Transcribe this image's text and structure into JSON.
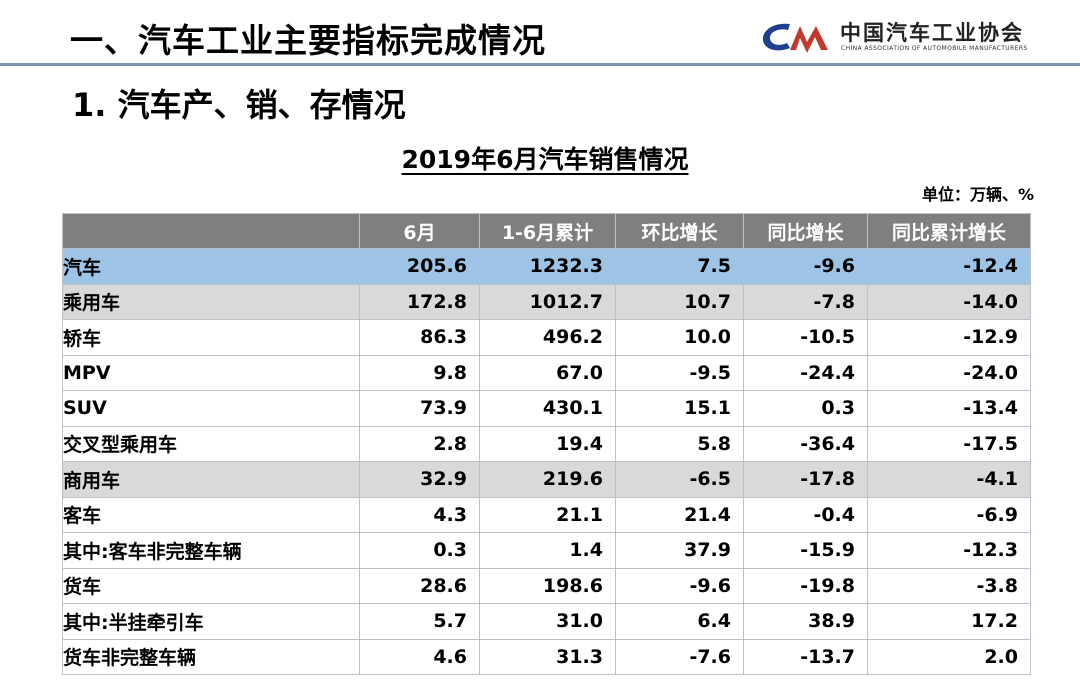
{
  "header": {
    "title": "一、汽车工业主要指标完成情况",
    "logo_cn": "中国汽车工业协会",
    "logo_en": "CHINA ASSOCIATION OF AUTOMOBILE MANUFACTURERS",
    "logo_color": "#1f3f8f"
  },
  "section_title": "1. 汽车产、销、存情况",
  "table_title": "2019年6月汽车销售情况",
  "unit": "单位：万辆、%",
  "table": {
    "columns": [
      "",
      "6月",
      "1-6月累计",
      "环比增长",
      "同比增长",
      "同比累计增长"
    ],
    "rows": [
      {
        "name": "汽车",
        "values": [
          "205.6",
          "1232.3",
          "7.5",
          "-9.6",
          "-12.4"
        ]
      },
      {
        "name": "乘用车",
        "values": [
          "172.8",
          "1012.7",
          "10.7",
          "-7.8",
          "-14.0"
        ]
      },
      {
        "name": "轿车",
        "values": [
          "86.3",
          "496.2",
          "10.0",
          "-10.5",
          "-12.9"
        ]
      },
      {
        "name": "MPV",
        "values": [
          "9.8",
          "67.0",
          "-9.5",
          "-24.4",
          "-24.0"
        ]
      },
      {
        "name": "SUV",
        "values": [
          "73.9",
          "430.1",
          "15.1",
          "0.3",
          "-13.4"
        ]
      },
      {
        "name": "交叉型乘用车",
        "values": [
          "2.8",
          "19.4",
          "5.8",
          "-36.4",
          "-17.5"
        ]
      },
      {
        "name": "商用车",
        "values": [
          "32.9",
          "219.6",
          "-6.5",
          "-17.8",
          "-4.1"
        ]
      },
      {
        "name": "客车",
        "values": [
          "4.3",
          "21.1",
          "21.4",
          "-0.4",
          "-6.9"
        ]
      },
      {
        "name": "其中:客车非完整车辆",
        "values": [
          "0.3",
          "1.4",
          "37.9",
          "-15.9",
          "-12.3"
        ]
      },
      {
        "name": "货车",
        "values": [
          "28.6",
          "198.6",
          "-9.6",
          "-19.8",
          "-3.8"
        ]
      },
      {
        "name": "其中:半挂牵引车",
        "values": [
          "5.7",
          "31.0",
          "6.4",
          "38.9",
          "17.2"
        ]
      },
      {
        "name": "货车非完整车辆",
        "values": [
          "4.6",
          "31.3",
          "-7.6",
          "-13.7",
          "2.0"
        ]
      }
    ]
  }
}
